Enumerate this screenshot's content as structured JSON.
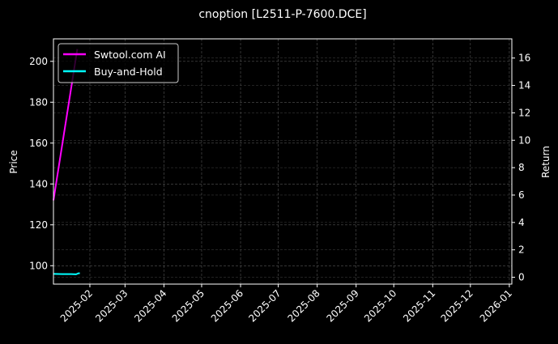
{
  "chart_data": {
    "type": "line",
    "title": "cnoption [L2511-P-7600.DCE]",
    "ylabel": "Price",
    "y2label": "Return",
    "ylim": [
      91,
      211
    ],
    "y2lim": [
      -0.5,
      17.4
    ],
    "yticks": [
      100,
      120,
      140,
      160,
      180,
      200
    ],
    "y2ticks": [
      0,
      2,
      4,
      6,
      8,
      10,
      12,
      14,
      16
    ],
    "xlim": [
      "2025-01-03",
      "2026-01-03"
    ],
    "xticks": [
      "2025-02",
      "2025-03",
      "2025-04",
      "2025-05",
      "2025-06",
      "2025-07",
      "2025-08",
      "2025-09",
      "2025-10",
      "2025-11",
      "2025-12",
      "2026-01"
    ],
    "grid": true,
    "legend": "top-left",
    "series": [
      {
        "name": "Swtool.com AI",
        "color": "#ff00ff",
        "x": [
          "2025-01-03",
          "2025-01-22"
        ],
        "y": [
          132,
          206
        ]
      },
      {
        "name": "Buy-and-Hold",
        "color": "#00ffff",
        "x": [
          "2025-01-03",
          "2025-01-10",
          "2025-01-17",
          "2025-01-21",
          "2025-01-23",
          "2025-01-24"
        ],
        "y": [
          96,
          95.9,
          95.9,
          95.8,
          96.3,
          96.3
        ]
      }
    ]
  }
}
